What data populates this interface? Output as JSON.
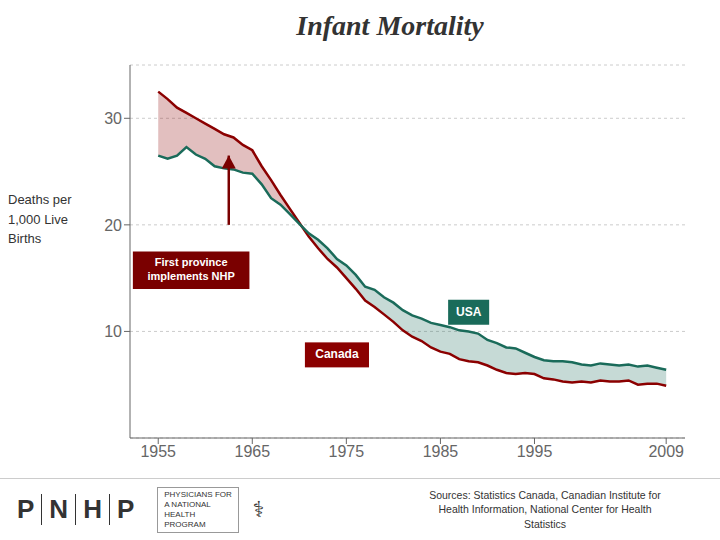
{
  "chart_data": {
    "type": "line",
    "title": "Infant Mortality",
    "ylabel": "Deaths per\n1,000 Live\nBirths",
    "x": [
      1955,
      1956,
      1957,
      1958,
      1959,
      1960,
      1961,
      1962,
      1963,
      1964,
      1965,
      1966,
      1967,
      1968,
      1969,
      1970,
      1971,
      1972,
      1973,
      1974,
      1975,
      1976,
      1977,
      1978,
      1979,
      1980,
      1981,
      1982,
      1983,
      1984,
      1985,
      1986,
      1987,
      1988,
      1989,
      1990,
      1991,
      1992,
      1993,
      1994,
      1995,
      1996,
      1997,
      1998,
      1999,
      2000,
      2001,
      2002,
      2003,
      2004,
      2005,
      2006,
      2007,
      2008,
      2009
    ],
    "series": [
      {
        "name": "Canada",
        "color": "#8b0000",
        "values": [
          32.5,
          31.8,
          31.0,
          30.5,
          30.0,
          29.5,
          29.0,
          28.5,
          28.2,
          27.5,
          27.0,
          25.5,
          24.2,
          22.8,
          21.5,
          20.2,
          18.9,
          17.8,
          16.8,
          16.0,
          15.0,
          14.0,
          12.9,
          12.3,
          11.6,
          10.9,
          10.1,
          9.5,
          9.1,
          8.5,
          8.1,
          7.9,
          7.4,
          7.2,
          7.1,
          6.8,
          6.4,
          6.1,
          6.0,
          6.1,
          6.0,
          5.6,
          5.5,
          5.3,
          5.2,
          5.3,
          5.2,
          5.4,
          5.3,
          5.3,
          5.4,
          5.0,
          5.1,
          5.1,
          4.9
        ]
      },
      {
        "name": "USA",
        "color": "#1a6b5a",
        "values": [
          26.5,
          26.2,
          26.5,
          27.3,
          26.6,
          26.2,
          25.5,
          25.3,
          25.2,
          24.9,
          24.8,
          23.8,
          22.5,
          21.9,
          21.0,
          20.1,
          19.2,
          18.6,
          17.8,
          16.8,
          16.2,
          15.3,
          14.2,
          13.9,
          13.2,
          12.7,
          12.0,
          11.5,
          11.2,
          10.8,
          10.6,
          10.4,
          10.1,
          10.0,
          9.8,
          9.2,
          8.9,
          8.5,
          8.4,
          8.0,
          7.6,
          7.3,
          7.2,
          7.2,
          7.1,
          6.9,
          6.8,
          7.0,
          6.9,
          6.8,
          6.9,
          6.7,
          6.8,
          6.6,
          6.4
        ]
      }
    ],
    "xlim": [
      1952,
      2011
    ],
    "xticks": [
      1955,
      1965,
      1975,
      1985,
      1995,
      2009
    ],
    "ylim": [
      0,
      35
    ],
    "yticks": [
      10,
      20,
      30
    ],
    "grid": true,
    "annotations": [
      {
        "text": "USA",
        "x": 1988,
        "y": 11.8,
        "color": "#1a6b5a"
      },
      {
        "text": "Canada",
        "x": 1974,
        "y": 7.8,
        "color": "#8b0000"
      },
      {
        "text": "First province\nimplements NHP",
        "x": 1958.5,
        "y": 17.5,
        "color": "#7a0000",
        "arrow": {
          "x": 1962.5,
          "y_start": 20.0,
          "y_end": 26.5
        }
      }
    ],
    "footer": {
      "logo": [
        "P",
        "N",
        "H",
        "P"
      ],
      "organization": "PHYSICIANS FOR\nA NATIONAL\nHEALTH\nPROGRAM",
      "symbol": "⚕",
      "sources": "Sources:  Statistics Canada, Canadian Institute for\nHealth Information, National Center for Health\nStatistics"
    }
  }
}
